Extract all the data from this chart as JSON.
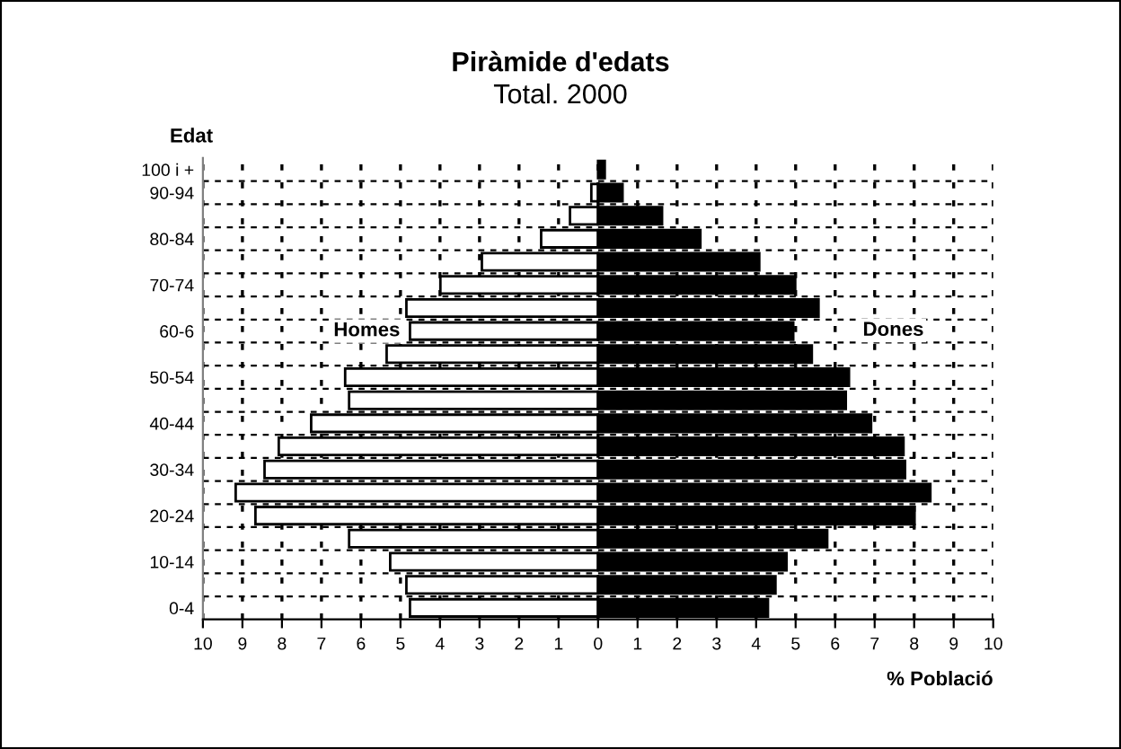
{
  "chart_data": {
    "type": "bar",
    "orientation": "horizontal",
    "title": "Piràmide d'edats",
    "subtitle": "Total. 2000",
    "ylabel": "Edat",
    "xlabel": "% Població",
    "categories": [
      "100 i +",
      "90-94",
      null,
      "80-84",
      null,
      "70-74",
      null,
      "60-6",
      null,
      "50-54",
      null,
      "40-44",
      null,
      "30-34",
      null,
      "20-24",
      null,
      "10-14",
      null,
      "0-4"
    ],
    "series": [
      {
        "name": "Homes",
        "color": "#ffffff",
        "values": [
          null,
          -0.17,
          -0.71,
          -1.44,
          -2.94,
          -3.99,
          -4.85,
          -4.76,
          -5.35,
          -6.4,
          -6.3,
          -7.26,
          -8.08,
          -8.44,
          -9.17,
          -8.67,
          -6.3,
          -5.26,
          -4.85,
          -4.76
        ]
      },
      {
        "name": "Dones",
        "color": "#000000",
        "values": [
          0.17,
          0.62,
          1.62,
          2.59,
          4.08,
          4.99,
          5.58,
          4.94,
          5.41,
          6.35,
          6.27,
          6.91,
          7.73,
          7.77,
          8.41,
          8.01,
          5.8,
          4.77,
          4.49,
          4.3
        ]
      }
    ],
    "xlim": [
      -10,
      10
    ],
    "xticks": [
      {
        "value": -10,
        "label": "10"
      },
      {
        "value": -9,
        "label": "9"
      },
      {
        "value": -8,
        "label": "8"
      },
      {
        "value": -7,
        "label": "7"
      },
      {
        "value": -6,
        "label": "6"
      },
      {
        "value": -5,
        "label": "5"
      },
      {
        "value": -4,
        "label": "4"
      },
      {
        "value": -3,
        "label": "3"
      },
      {
        "value": -2,
        "label": "2"
      },
      {
        "value": -1,
        "label": "1"
      },
      0,
      1,
      2,
      3,
      4,
      5,
      6,
      7,
      8,
      9,
      10
    ],
    "stacked": true,
    "grid": true
  }
}
